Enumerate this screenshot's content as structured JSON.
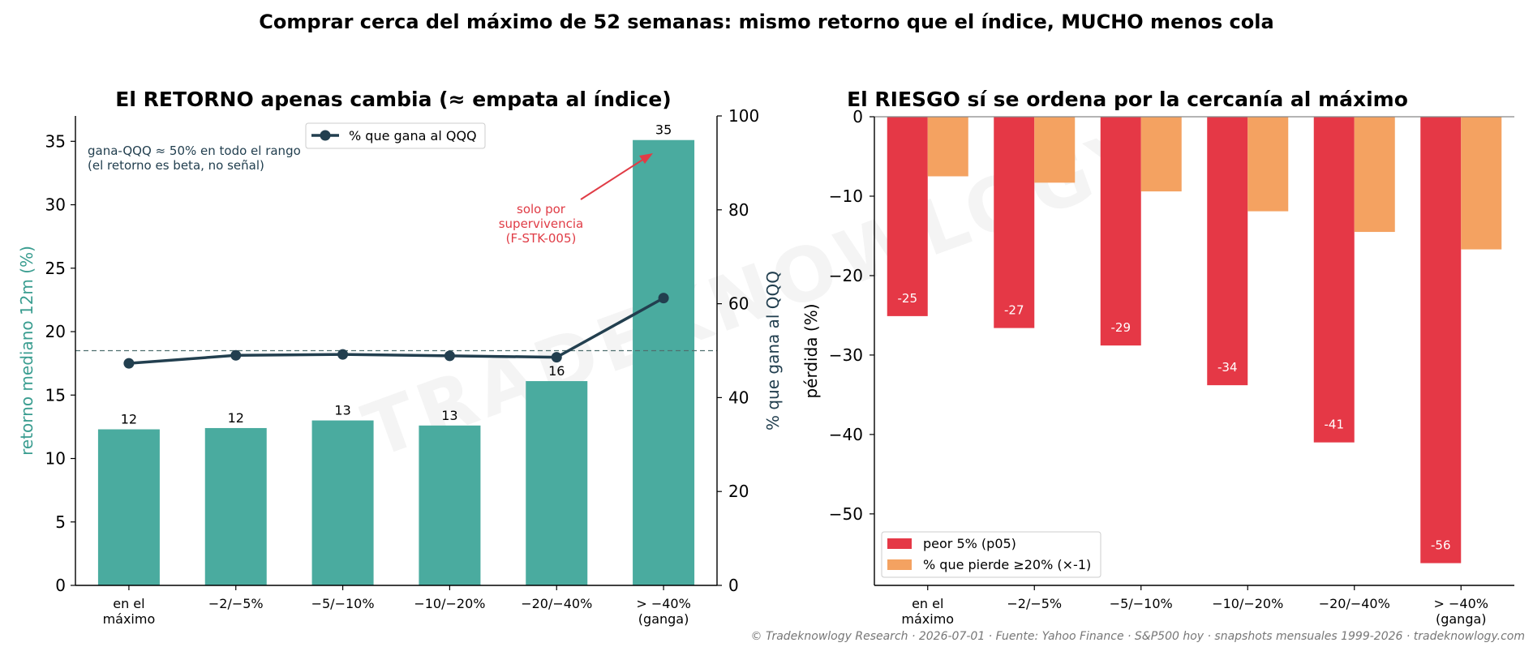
{
  "suptitle": "Comprar cerca del máximo de 52 semanas: mismo retorno que el índice, MUCHO menos cola",
  "watermark": "TRADEKNOWLOGY",
  "footer": "© Tradeknowlogy Research   ·   2026-07-01   ·   Fuente: Yahoo Finance · S&P500 hoy · snapshots mensuales 1999-2026   ·   tradeknowlogy.com",
  "chart_data": [
    {
      "type": "bar",
      "title": "El RETORNO apenas cambia (≈ empata al índice)",
      "categories": [
        [
          "en el",
          "máximo"
        ],
        [
          "−2/−5%"
        ],
        [
          "−5/−10%"
        ],
        [
          "−10/−20%"
        ],
        [
          "−20/−40%"
        ],
        [
          "> −40%",
          "(ganga)"
        ]
      ],
      "ylabel": "retorno mediano 12m (%)",
      "ylim": [
        0,
        37
      ],
      "yticks": [
        0,
        5,
        10,
        15,
        20,
        25,
        30,
        35
      ],
      "values": [
        12.3,
        12.4,
        13.0,
        12.6,
        16.1,
        35.1
      ],
      "value_labels": [
        "12",
        "12",
        "13",
        "13",
        "16",
        "35"
      ],
      "bar_color": "#4aab9f",
      "secondary": {
        "type": "line",
        "name": "% que gana al QQQ",
        "ylabel": "% que gana al QQQ",
        "ylim": [
          0,
          100
        ],
        "yticks": [
          0,
          20,
          40,
          60,
          80,
          100
        ],
        "values": [
          47.3,
          49.0,
          49.2,
          48.9,
          48.6,
          61.2
        ],
        "color": "#223f4f"
      },
      "reference_line": {
        "value": 18.5,
        "style": "dashed",
        "color": "#4f6f6f"
      },
      "legend_position": "top-center",
      "annotations": [
        {
          "text": [
            "gana-QQQ ≈ 50% en todo el rango",
            "(el retorno es beta, no señal)"
          ],
          "color": "#223f4f"
        },
        {
          "text": [
            "solo por",
            "supervivencia",
            "(F-STK-005)"
          ],
          "color": "#e03c46"
        }
      ]
    },
    {
      "type": "bar",
      "title": "El RIESGO sí se ordena por la cercanía al máximo",
      "categories": [
        [
          "en el",
          "máximo"
        ],
        [
          "−2/−5%"
        ],
        [
          "−5/−10%"
        ],
        [
          "−10/−20%"
        ],
        [
          "−20/−40%"
        ],
        [
          "> −40%",
          "(ganga)"
        ]
      ],
      "ylabel": "pérdida (%)",
      "ylim": [
        -59,
        0
      ],
      "yticks": [
        0,
        -10,
        -20,
        -30,
        -40,
        -50
      ],
      "ytick_labels": [
        "0",
        "−10",
        "−20",
        "−30",
        "−40",
        "−50"
      ],
      "series": [
        {
          "name": "peor 5% (p05)",
          "values": [
            -25.1,
            -26.6,
            -28.8,
            -33.8,
            -41.0,
            -56.2
          ],
          "value_labels": [
            "-25",
            "-27",
            "-29",
            "-34",
            "-41",
            "-56"
          ],
          "color": "#e53846"
        },
        {
          "name": "% que pierde ≥20% (×-1)",
          "values": [
            -7.5,
            -8.3,
            -9.4,
            -11.9,
            -14.5,
            -16.7
          ],
          "color": "#f4a261"
        }
      ],
      "legend_position": "bottom-left"
    }
  ]
}
